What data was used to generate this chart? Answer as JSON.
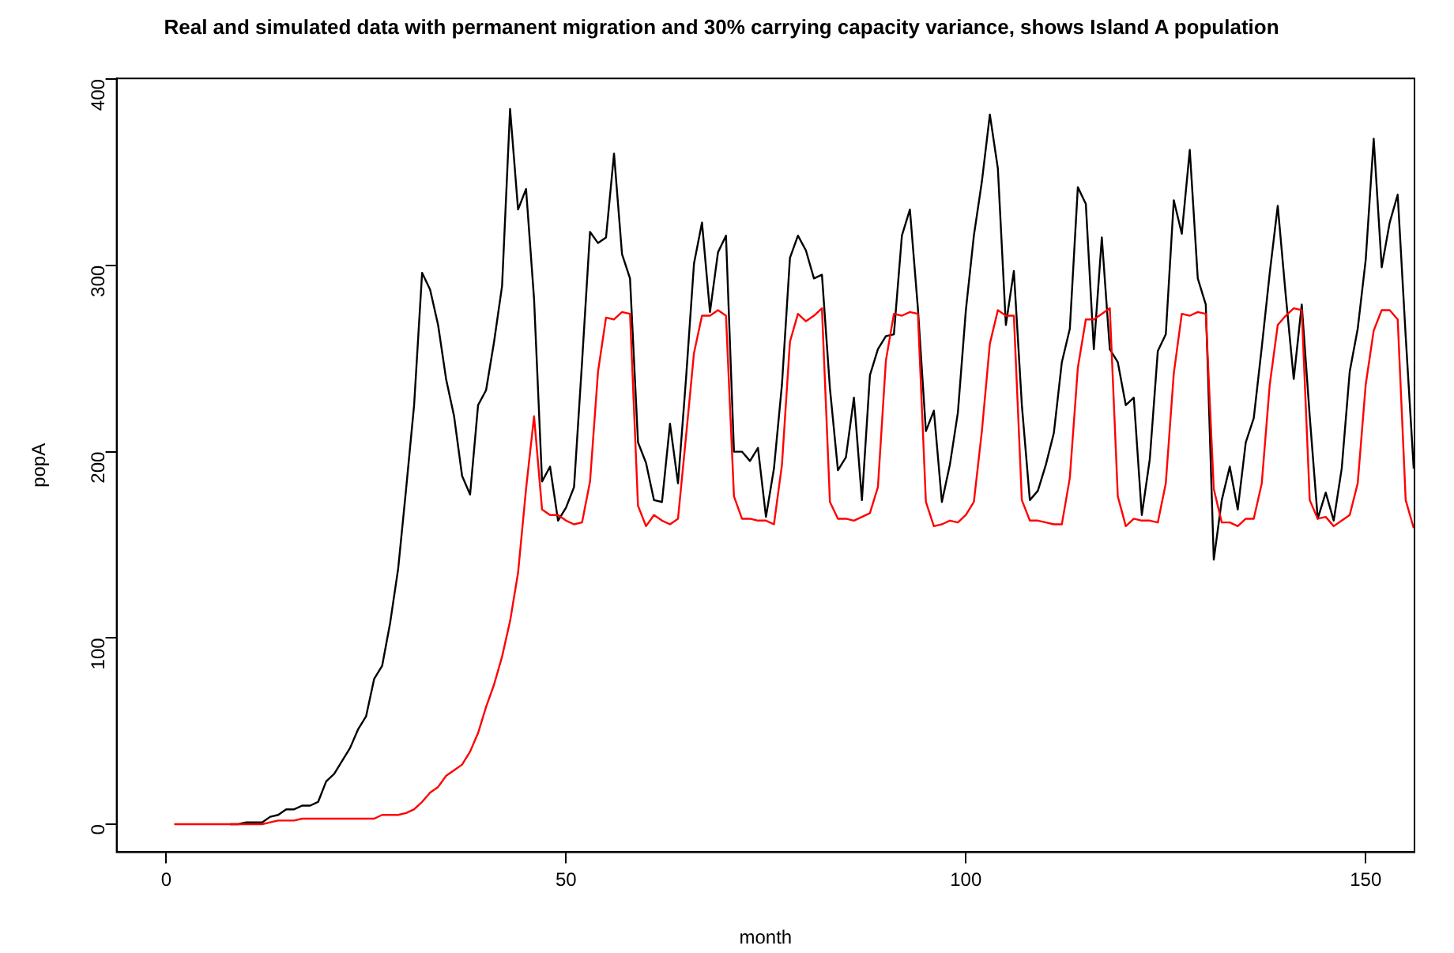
{
  "chart_data": {
    "type": "line",
    "title": "Real and simulated data with permanent migration and 30% carrying capacity variance, shows Island A population",
    "xlabel": "month",
    "ylabel": "popA",
    "x": [
      1,
      2,
      3,
      4,
      5,
      6,
      7,
      8,
      9,
      10,
      11,
      12,
      13,
      14,
      15,
      16,
      17,
      18,
      19,
      20,
      21,
      22,
      23,
      24,
      25,
      26,
      27,
      28,
      29,
      30,
      31,
      32,
      33,
      34,
      35,
      36,
      37,
      38,
      39,
      40,
      41,
      42,
      43,
      44,
      45,
      46,
      47,
      48,
      49,
      50,
      51,
      52,
      53,
      54,
      55,
      56,
      57,
      58,
      59,
      60,
      61,
      62,
      63,
      64,
      65,
      66,
      67,
      68,
      69,
      70,
      71,
      72,
      73,
      74,
      75,
      76,
      77,
      78,
      79,
      80,
      81,
      82,
      83,
      84,
      85,
      86,
      87,
      88,
      89,
      90,
      91,
      92,
      93,
      94,
      95,
      96,
      97,
      98,
      99,
      100,
      101,
      102,
      103,
      104,
      105,
      106,
      107,
      108,
      109,
      110,
      111,
      112,
      113,
      114,
      115,
      116,
      117,
      118,
      119,
      120,
      121,
      122,
      123,
      124,
      125,
      126,
      127,
      128,
      129,
      130,
      131,
      132,
      133,
      134,
      135,
      136,
      137,
      138,
      139,
      140,
      141,
      142,
      143,
      144,
      145,
      146,
      147,
      148,
      149,
      150,
      151,
      152,
      153,
      154,
      155,
      156
    ],
    "series": [
      {
        "color": "#000000",
        "values": [
          null,
          null,
          null,
          null,
          null,
          null,
          null,
          0,
          0,
          1,
          1,
          1,
          4,
          5,
          8,
          8,
          10,
          10,
          12,
          23,
          27,
          34,
          41,
          51,
          58,
          78,
          85,
          108,
          137,
          180,
          225,
          296,
          287,
          268,
          239,
          219,
          187,
          177,
          225,
          233,
          259,
          289,
          384,
          330,
          341,
          282,
          184,
          192,
          163,
          170,
          181,
          248,
          318,
          312,
          315,
          360,
          306,
          293,
          205,
          194,
          174,
          173,
          215,
          183,
          239,
          301,
          323,
          275,
          307,
          316,
          200,
          200,
          195,
          202,
          165,
          191,
          236,
          304,
          316,
          308,
          293,
          295,
          234,
          190,
          197,
          229,
          174,
          241,
          255,
          262,
          263,
          316,
          330,
          277,
          211,
          222,
          173,
          193,
          221,
          276,
          316,
          345,
          381,
          352,
          268,
          297,
          225,
          174,
          179,
          193,
          210,
          248,
          266,
          342,
          333,
          255,
          315,
          255,
          248,
          225,
          229,
          166,
          196,
          254,
          263,
          335,
          317,
          362,
          293,
          279,
          142,
          174,
          192,
          169,
          205,
          218,
          256,
          296,
          332,
          284,
          239,
          279,
          219,
          164,
          178,
          163,
          191,
          243,
          266,
          303,
          368,
          299,
          323,
          338,
          262,
          191
        ]
      },
      {
        "color": "#ff0000",
        "values": [
          0,
          0,
          0,
          0,
          0,
          0,
          0,
          0,
          0,
          0,
          0,
          0,
          1,
          2,
          2,
          2,
          3,
          3,
          3,
          3,
          3,
          3,
          3,
          3,
          3,
          3,
          5,
          5,
          5,
          6,
          8,
          12,
          17,
          20,
          26,
          29,
          32,
          39,
          49,
          63,
          75,
          90,
          109,
          135,
          180,
          219,
          169,
          166,
          166,
          163,
          161,
          162,
          184,
          243,
          272,
          271,
          275,
          274,
          171,
          160,
          166,
          163,
          161,
          164,
          208,
          253,
          273,
          273,
          276,
          273,
          176,
          164,
          164,
          163,
          163,
          161,
          193,
          259,
          274,
          270,
          273,
          277,
          173,
          164,
          164,
          163,
          165,
          167,
          181,
          249,
          274,
          273,
          275,
          274,
          173,
          160,
          161,
          163,
          162,
          166,
          173,
          211,
          258,
          276,
          273,
          273,
          174,
          163,
          163,
          162,
          161,
          161,
          186,
          245,
          271,
          271,
          274,
          277,
          176,
          160,
          164,
          163,
          163,
          162,
          183,
          242,
          274,
          273,
          275,
          274,
          180,
          162,
          162,
          160,
          164,
          164,
          183,
          236,
          268,
          273,
          277,
          276,
          174,
          164,
          165,
          160,
          163,
          166,
          183,
          236,
          265,
          276,
          276,
          271,
          174,
          159
        ]
      }
    ],
    "xlim": [
      -6.2,
      156.1
    ],
    "xticks": [
      0,
      50,
      100,
      150
    ],
    "ylim": [
      -15,
      400.4
    ],
    "yticks": [
      0,
      100,
      200,
      300,
      400
    ],
    "grid": false,
    "legend": false,
    "marker": "none",
    "line_style": "solid"
  }
}
